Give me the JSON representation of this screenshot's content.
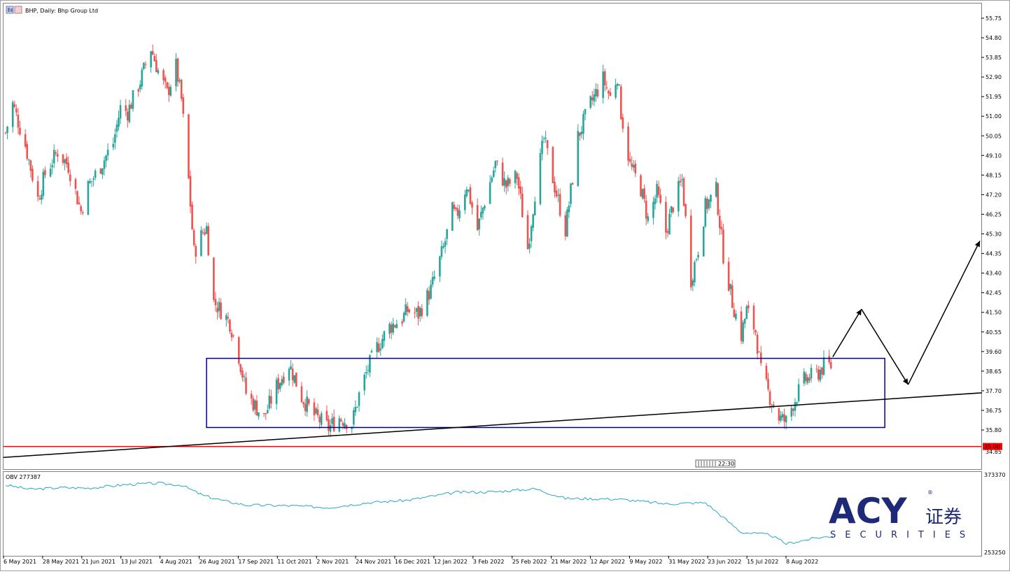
{
  "window": {
    "title": "BHP, Daily: Bhp Group Ltd"
  },
  "colors": {
    "bull": "#26a69a",
    "bear": "#ef5350",
    "support_line": "#ff0000",
    "trend_line": "#000000",
    "box": "#000080",
    "projection": "#000000",
    "obv_line": "#26a6c8",
    "logo_blue": "#1e2a78"
  },
  "price_axis": {
    "ticks": [
      "55.75",
      "54.80",
      "53.85",
      "52.90",
      "51.95",
      "51.00",
      "50.05",
      "49.10",
      "48.15",
      "47.20",
      "46.25",
      "45.30",
      "44.35",
      "43.40",
      "42.45",
      "41.50",
      "40.55",
      "39.60",
      "38.65",
      "37.70",
      "36.75",
      "35.80"
    ],
    "current_level_label": "35.00",
    "partial_label": "34.85"
  },
  "time_axis": {
    "labels": [
      "6 May 2021",
      "28 May 2021",
      "21 Jun 2021",
      "13 Jul 2021",
      "4 Aug 2021",
      "26 Aug 2021",
      "17 Sep 2021",
      "11 Oct 2021",
      "2 Nov 2021",
      "24 Nov 2021",
      "16 Dec 2021",
      "12 Jan 2022",
      "3 Feb 2022",
      "25 Feb 2022",
      "21 Mar 2022",
      "12 Apr 2022",
      "9 May 2022",
      "31 May 2022",
      "23 Jun 2022",
      "15 Jul 2022",
      "8 Aug 2022"
    ]
  },
  "time_marker": "22:30",
  "obv": {
    "label": "OBV 277387",
    "top_value": "373370",
    "bottom_value": "253250"
  },
  "logo": {
    "brand": "ACY",
    "cn": "证券",
    "sub": "SECURITIES",
    "reg": "®"
  },
  "chart_data": {
    "type": "candlestick",
    "title": "BHP, Daily: Bhp Group Ltd",
    "ylim": [
      34.6,
      56.2
    ],
    "price_path": [
      {
        "date": "2021-05-06",
        "close": 50.2
      },
      {
        "date": "2021-05-10",
        "close": 51.6
      },
      {
        "date": "2021-05-17",
        "close": 49.6
      },
      {
        "date": "2021-05-24",
        "close": 47.0
      },
      {
        "date": "2021-05-28",
        "close": 48.2
      },
      {
        "date": "2021-06-04",
        "close": 49.3
      },
      {
        "date": "2021-06-10",
        "close": 48.6
      },
      {
        "date": "2021-06-17",
        "close": 46.4
      },
      {
        "date": "2021-06-21",
        "close": 47.6
      },
      {
        "date": "2021-06-28",
        "close": 48.6
      },
      {
        "date": "2021-07-05",
        "close": 49.7
      },
      {
        "date": "2021-07-09",
        "close": 51.4
      },
      {
        "date": "2021-07-13",
        "close": 51.2
      },
      {
        "date": "2021-07-20",
        "close": 52.7
      },
      {
        "date": "2021-07-26",
        "close": 54.3
      },
      {
        "date": "2021-07-30",
        "close": 53.2
      },
      {
        "date": "2021-08-04",
        "close": 52.1
      },
      {
        "date": "2021-08-09",
        "close": 53.4
      },
      {
        "date": "2021-08-12",
        "close": 51.8
      },
      {
        "date": "2021-08-16",
        "close": 47.9
      },
      {
        "date": "2021-08-19",
        "close": 44.4
      },
      {
        "date": "2021-08-24",
        "close": 45.4
      },
      {
        "date": "2021-08-26",
        "close": 45.6
      },
      {
        "date": "2021-08-30",
        "close": 42.0
      },
      {
        "date": "2021-09-03",
        "close": 41.6
      },
      {
        "date": "2021-09-08",
        "close": 41.0
      },
      {
        "date": "2021-09-13",
        "close": 39.4
      },
      {
        "date": "2021-09-17",
        "close": 37.6
      },
      {
        "date": "2021-09-21",
        "close": 37.1
      },
      {
        "date": "2021-09-27",
        "close": 36.4
      },
      {
        "date": "2021-10-04",
        "close": 37.9
      },
      {
        "date": "2021-10-11",
        "close": 39.0
      },
      {
        "date": "2021-10-18",
        "close": 37.4
      },
      {
        "date": "2021-10-25",
        "close": 36.5
      },
      {
        "date": "2021-11-02",
        "close": 35.9
      },
      {
        "date": "2021-11-08",
        "close": 36.4
      },
      {
        "date": "2021-11-15",
        "close": 36.1
      },
      {
        "date": "2021-11-19",
        "close": 37.5
      },
      {
        "date": "2021-11-24",
        "close": 38.8
      },
      {
        "date": "2021-11-29",
        "close": 39.8
      },
      {
        "date": "2021-12-06",
        "close": 40.8
      },
      {
        "date": "2021-12-13",
        "close": 41.2
      },
      {
        "date": "2021-12-16",
        "close": 41.6
      },
      {
        "date": "2021-12-22",
        "close": 41.4
      },
      {
        "date": "2021-12-29",
        "close": 42.6
      },
      {
        "date": "2022-01-05",
        "close": 44.6
      },
      {
        "date": "2022-01-10",
        "close": 46.4
      },
      {
        "date": "2022-01-12",
        "close": 46.1
      },
      {
        "date": "2022-01-18",
        "close": 47.7
      },
      {
        "date": "2022-01-24",
        "close": 45.5
      },
      {
        "date": "2022-01-28",
        "close": 46.9
      },
      {
        "date": "2022-02-03",
        "close": 48.7
      },
      {
        "date": "2022-02-09",
        "close": 47.6
      },
      {
        "date": "2022-02-15",
        "close": 48.1
      },
      {
        "date": "2022-02-21",
        "close": 44.6
      },
      {
        "date": "2022-02-25",
        "close": 47.3
      },
      {
        "date": "2022-03-02",
        "close": 49.9
      },
      {
        "date": "2022-03-08",
        "close": 47.6
      },
      {
        "date": "2022-03-14",
        "close": 45.5
      },
      {
        "date": "2022-03-18",
        "close": 48.0
      },
      {
        "date": "2022-03-21",
        "close": 50.0
      },
      {
        "date": "2022-03-28",
        "close": 51.6
      },
      {
        "date": "2022-04-04",
        "close": 52.8
      },
      {
        "date": "2022-04-08",
        "close": 51.9
      },
      {
        "date": "2022-04-12",
        "close": 53.0
      },
      {
        "date": "2022-04-14",
        "close": 51.2
      },
      {
        "date": "2022-04-19",
        "close": 48.6
      },
      {
        "date": "2022-04-25",
        "close": 47.5
      },
      {
        "date": "2022-04-29",
        "close": 46.0
      },
      {
        "date": "2022-05-04",
        "close": 47.3
      },
      {
        "date": "2022-05-09",
        "close": 45.4
      },
      {
        "date": "2022-05-13",
        "close": 46.7
      },
      {
        "date": "2022-05-18",
        "close": 47.9
      },
      {
        "date": "2022-05-23",
        "close": 43.1
      },
      {
        "date": "2022-05-27",
        "close": 44.6
      },
      {
        "date": "2022-05-31",
        "close": 46.6
      },
      {
        "date": "2022-06-06",
        "close": 47.4
      },
      {
        "date": "2022-06-10",
        "close": 44.3
      },
      {
        "date": "2022-06-15",
        "close": 42.0
      },
      {
        "date": "2022-06-20",
        "close": 40.4
      },
      {
        "date": "2022-06-23",
        "close": 41.6
      },
      {
        "date": "2022-06-28",
        "close": 40.6
      },
      {
        "date": "2022-07-01",
        "close": 38.6
      },
      {
        "date": "2022-07-06",
        "close": 37.4
      },
      {
        "date": "2022-07-11",
        "close": 36.4
      },
      {
        "date": "2022-07-15",
        "close": 36.2
      },
      {
        "date": "2022-07-19",
        "close": 37.1
      },
      {
        "date": "2022-07-25",
        "close": 38.2
      },
      {
        "date": "2022-08-01",
        "close": 38.5
      },
      {
        "date": "2022-08-05",
        "close": 38.9
      },
      {
        "date": "2022-08-10",
        "close": 38.9
      }
    ],
    "horizontal_line": 35.0,
    "annotations": [
      {
        "type": "rectangle",
        "from": "2021-08-26",
        "to": "2022-09-08",
        "low": 35.92,
        "high": 39.27
      },
      {
        "type": "trendline",
        "from": {
          "date": "2021-05-06",
          "price": 34.47
        },
        "to": {
          "date": "2022-10-31",
          "price": 37.6
        }
      },
      {
        "type": "projection",
        "points": [
          {
            "date": "2022-08-10",
            "price": 39.34
          },
          {
            "date": "2022-08-26",
            "price": 41.65
          },
          {
            "date": "2022-09-21",
            "price": 38.0
          },
          {
            "date": "2022-10-31",
            "price": 44.96
          }
        ]
      }
    ],
    "obv_indicator": {
      "name": "OBV",
      "value": 277387,
      "ylim": [
        253250,
        373370
      ],
      "path": [
        {
          "date": "2021-05-06",
          "value": 362000
        },
        {
          "date": "2021-05-20",
          "value": 355000
        },
        {
          "date": "2021-06-07",
          "value": 358000
        },
        {
          "date": "2021-06-21",
          "value": 357000
        },
        {
          "date": "2021-07-13",
          "value": 363000
        },
        {
          "date": "2021-07-30",
          "value": 365000
        },
        {
          "date": "2021-08-12",
          "value": 362000
        },
        {
          "date": "2021-08-24",
          "value": 345000
        },
        {
          "date": "2021-09-06",
          "value": 335000
        },
        {
          "date": "2021-09-17",
          "value": 329000
        },
        {
          "date": "2021-10-11",
          "value": 328000
        },
        {
          "date": "2021-11-02",
          "value": 325000
        },
        {
          "date": "2021-11-24",
          "value": 333000
        },
        {
          "date": "2021-12-16",
          "value": 337000
        },
        {
          "date": "2022-01-12",
          "value": 350000
        },
        {
          "date": "2022-02-03",
          "value": 351000
        },
        {
          "date": "2022-02-25",
          "value": 356000
        },
        {
          "date": "2022-03-14",
          "value": 340000
        },
        {
          "date": "2022-04-12",
          "value": 339000
        },
        {
          "date": "2022-05-09",
          "value": 331000
        },
        {
          "date": "2022-05-31",
          "value": 333000
        },
        {
          "date": "2022-06-20",
          "value": 284000
        },
        {
          "date": "2022-07-06",
          "value": 280000
        },
        {
          "date": "2022-07-15",
          "value": 265000
        },
        {
          "date": "2022-08-01",
          "value": 275000
        },
        {
          "date": "2022-08-10",
          "value": 277387
        }
      ]
    }
  }
}
